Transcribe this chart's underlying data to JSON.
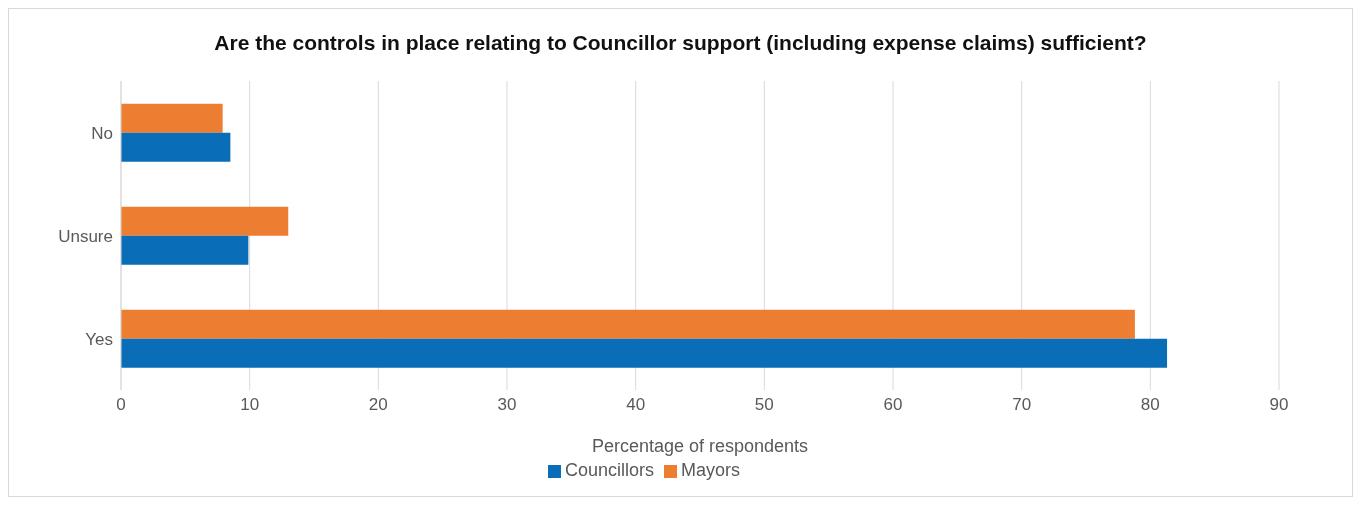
{
  "chart_data": {
    "type": "bar",
    "orientation": "horizontal",
    "title": "Are the controls in place relating to Councillor support (including expense claims) sufficient?",
    "xlabel": "Percentage of respondents",
    "categories": [
      "No",
      "Unsure",
      "Yes"
    ],
    "series": [
      {
        "name": "Mayors",
        "color": "#ed7d31",
        "values": [
          7.9,
          13.0,
          78.8
        ]
      },
      {
        "name": "Councillors",
        "color": "#0a6db7",
        "values": [
          8.5,
          9.9,
          81.3
        ]
      }
    ],
    "xlim": [
      0,
      90
    ],
    "xticks": [
      0,
      10,
      20,
      30,
      40,
      50,
      60,
      70,
      80,
      90
    ],
    "grid": "x",
    "legend": "bottom"
  }
}
